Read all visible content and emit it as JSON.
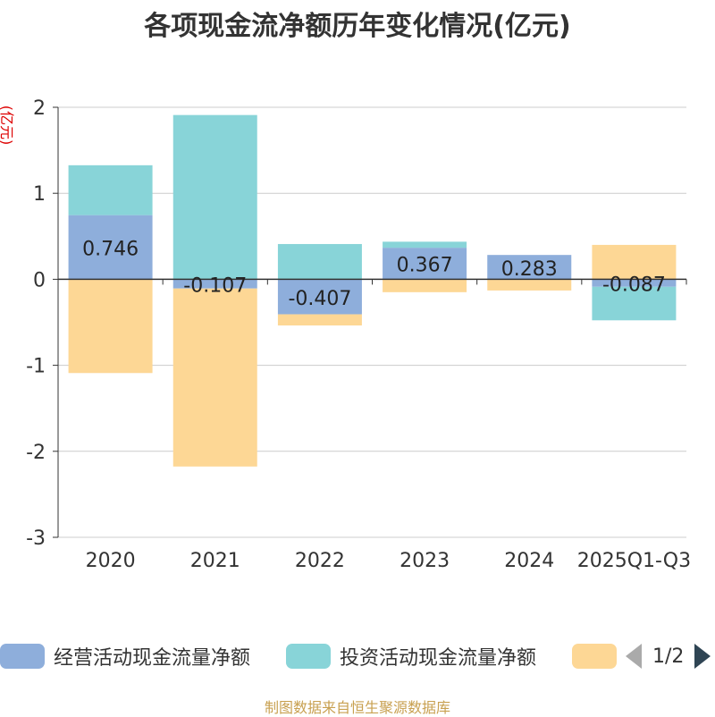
{
  "chart_data": {
    "type": "bar",
    "stacked": true,
    "title": "各项现金流净额历年变化情况(亿元)",
    "ylabel": "(亿元)",
    "xlabel": "",
    "categories": [
      "2020",
      "2021",
      "2022",
      "2023",
      "2024",
      "2025Q1-Q3"
    ],
    "ylim": [
      -3,
      2
    ],
    "yticks": [
      2,
      1,
      0,
      -1,
      -2,
      -3
    ],
    "grid": true,
    "legend_position": "bottom",
    "series": [
      {
        "name": "经营活动现金流量净额",
        "color": "#8eaedb",
        "values": [
          0.746,
          -0.107,
          -0.407,
          0.367,
          0.283,
          -0.087
        ],
        "labels": [
          "0.746",
          "-0.107",
          "-0.407",
          "0.367",
          "0.283",
          "-0.087"
        ]
      },
      {
        "name": "投资活动现金流量净额",
        "color": "#88d4d8",
        "values": [
          0.58,
          1.91,
          0.41,
          0.07,
          0.0,
          -0.39
        ]
      },
      {
        "name": "",
        "color": "#fdd795",
        "values": [
          -1.09,
          -2.07,
          -0.13,
          -0.15,
          -0.13,
          0.4
        ]
      }
    ]
  },
  "legend": {
    "items": [
      {
        "label": "经营活动现金流量净额",
        "color": "#8eaedb"
      },
      {
        "label": "投资活动现金流量净额",
        "color": "#88d4d8"
      },
      {
        "label": "",
        "color": "#fdd795"
      }
    ],
    "page_text": "1/2"
  },
  "source_text": "制图数据来自恒生聚源数据库"
}
